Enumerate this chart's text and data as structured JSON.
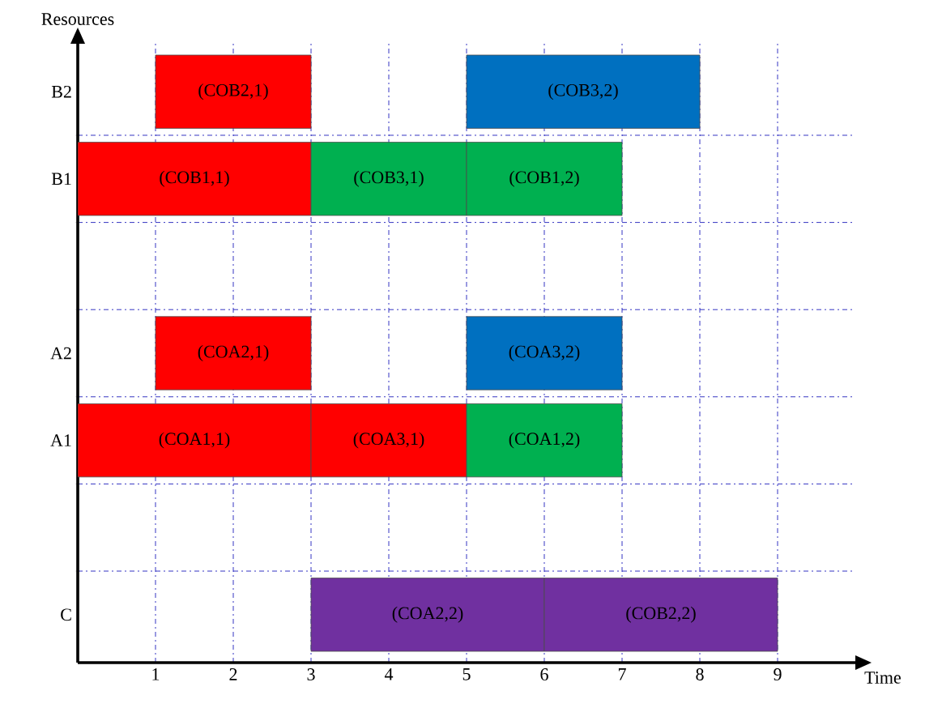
{
  "chart_data": {
    "type": "bar",
    "orientation": "horizontal",
    "xlabel": "Time",
    "ylabel": "Resources",
    "categories": [
      "B2",
      "B1",
      null,
      "A2",
      "A1",
      null,
      "C"
    ],
    "xlim": [
      0,
      10
    ],
    "xticks": [
      1,
      2,
      3,
      4,
      5,
      6,
      7,
      8,
      9
    ],
    "grid": true,
    "series": [
      {
        "base": [
          1,
          0,
          null,
          1,
          0,
          null,
          3
        ],
        "values": [
          2,
          3,
          null,
          2,
          3,
          null,
          3
        ],
        "colors": [
          "#ff0000",
          "#ff0000",
          null,
          "#ff0000",
          "#ff0000",
          null,
          "#7030a0"
        ],
        "value_labels": [
          "(COB2,1)",
          "(COB1,1)",
          null,
          "(COA2,1)",
          "(COA1,1)",
          null,
          "(COA2,2)"
        ]
      },
      {
        "base": [
          5,
          3,
          null,
          5,
          3,
          null,
          6
        ],
        "values": [
          3,
          2,
          null,
          2,
          2,
          null,
          3
        ],
        "colors": [
          "#0070c0",
          "#00b050",
          null,
          "#0070c0",
          "#ff0000",
          null,
          "#7030a0"
        ],
        "value_labels": [
          "(COB3,2)",
          "(COB3,1)",
          null,
          "(COA3,2)",
          "(COA3,1)",
          null,
          "(COB2,2)"
        ]
      },
      {
        "base": [
          null,
          5,
          null,
          null,
          5,
          null,
          null
        ],
        "values": [
          null,
          2,
          null,
          null,
          2,
          null,
          null
        ],
        "colors": [
          null,
          "#00b050",
          null,
          null,
          "#00b050",
          null,
          null
        ],
        "value_labels": [
          null,
          "(COB1,2)",
          null,
          null,
          "(COA1,2)",
          null,
          null
        ]
      }
    ]
  }
}
